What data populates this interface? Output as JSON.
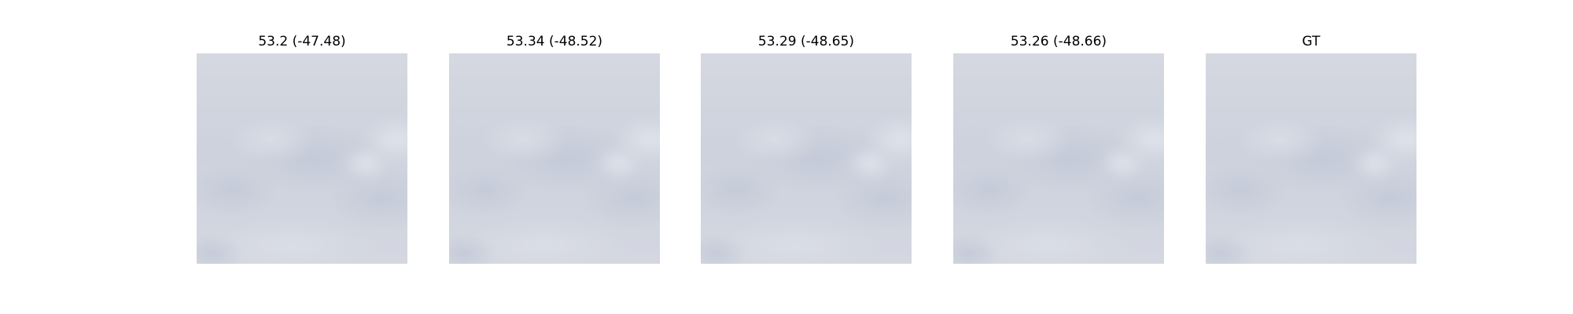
{
  "figure": {
    "panels": [
      {
        "title": "53.2 (-47.48)",
        "image": "cloudy-sky-prediction"
      },
      {
        "title": "53.34 (-48.52)",
        "image": "cloudy-sky-prediction"
      },
      {
        "title": "53.29 (-48.65)",
        "image": "cloudy-sky-prediction"
      },
      {
        "title": "53.26 (-48.66)",
        "image": "cloudy-sky-prediction"
      },
      {
        "title": "GT",
        "image": "cloudy-sky-ground-truth"
      }
    ],
    "colors": {
      "background": "#ffffff",
      "sky_base": "#d0d5df",
      "sky_light": "#dde0e8",
      "sky_shadow": "#c6ccd9",
      "title_text": "#000000"
    }
  }
}
